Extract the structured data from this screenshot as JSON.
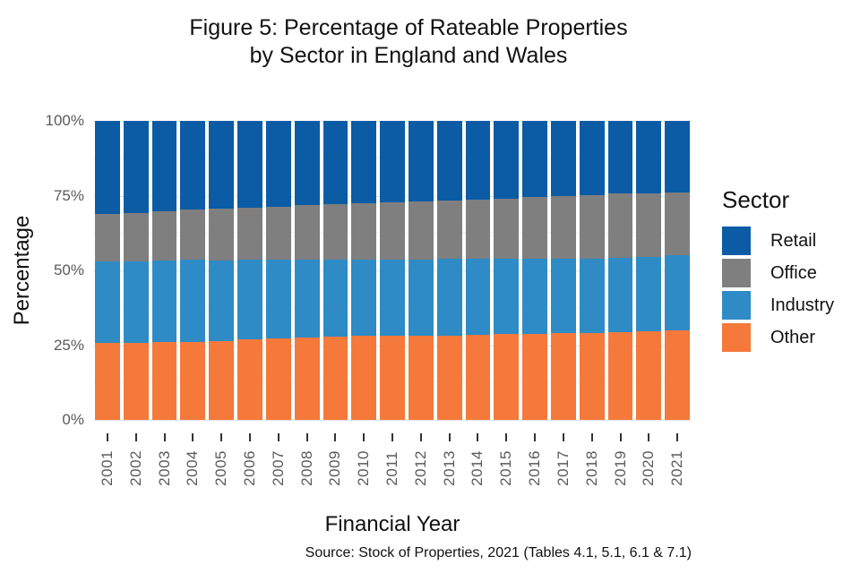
{
  "figure": {
    "title_line1": "Figure 5: Percentage of Rateable Properties",
    "title_line2": "by Sector in England and Wales",
    "caption": "Source: Stock of Properties, 2021 (Tables 4.1, 5.1, 6.1 & 7.1)"
  },
  "axes": {
    "y_title": "Percentage",
    "x_title": "Financial Year"
  },
  "legend": {
    "title": "Sector",
    "entries": [
      {
        "label": "Retail",
        "color": "#0B5CA5"
      },
      {
        "label": "Office",
        "color": "#7F7F7F"
      },
      {
        "label": "Industry",
        "color": "#2E8BC6"
      },
      {
        "label": "Other",
        "color": "#F4793B"
      }
    ]
  },
  "colors": {
    "retail": "#0B5CA5",
    "office": "#7F7F7F",
    "industry": "#2E8BC6",
    "other": "#F4793B",
    "axis_text": "#5a5a5a",
    "major_gridline": "#e4e4e4",
    "minor_gridline": "#f2f2f2",
    "background": "#ffffff"
  },
  "chart_data": {
    "type": "bar",
    "stacked": true,
    "percent_stacked": true,
    "title": "Figure 5: Percentage of Rateable Properties by Sector in England and Wales",
    "xlabel": "Financial Year",
    "ylabel": "Percentage",
    "caption": "Source: Stock of Properties, 2021 (Tables 4.1, 5.1, 6.1 & 7.1)",
    "legend_title": "Sector",
    "legend_position": "right",
    "grid": true,
    "ylim": [
      0,
      100
    ],
    "ytick_values": [
      0,
      25,
      50,
      75,
      100
    ],
    "ytick_labels": [
      "0%",
      "25%",
      "50%",
      "75%",
      "100%"
    ],
    "minor_gridline_values": [
      12.5,
      37.5,
      62.5,
      87.5
    ],
    "categories": [
      "2001",
      "2002",
      "2003",
      "2004",
      "2005",
      "2006",
      "2007",
      "2008",
      "2009",
      "2010",
      "2011",
      "2012",
      "2013",
      "2014",
      "2015",
      "2016",
      "2017",
      "2018",
      "2019",
      "2020",
      "2021"
    ],
    "stack_order_bottom_to_top": [
      "Other",
      "Industry",
      "Office",
      "Retail"
    ],
    "series": [
      {
        "name": "Other",
        "color": "#F4793B",
        "values": [
          25.7,
          25.8,
          26.1,
          26.2,
          26.4,
          27.0,
          27.3,
          27.6,
          27.9,
          28.0,
          28.0,
          28.1,
          28.2,
          28.4,
          28.7,
          28.8,
          29.0,
          29.1,
          29.3,
          29.5,
          29.9
        ]
      },
      {
        "name": "Industry",
        "color": "#2E8BC6",
        "values": [
          27.2,
          27.2,
          27.3,
          27.3,
          26.9,
          26.7,
          26.4,
          26.1,
          25.7,
          25.6,
          25.6,
          25.5,
          25.6,
          25.4,
          25.3,
          25.2,
          25.0,
          24.9,
          24.9,
          25.1,
          25.1
        ]
      },
      {
        "name": "Office",
        "color": "#7F7F7F",
        "values": [
          15.9,
          16.2,
          16.5,
          16.8,
          17.3,
          17.3,
          17.6,
          18.1,
          18.6,
          18.9,
          19.2,
          19.4,
          19.6,
          19.9,
          20.0,
          20.6,
          21.0,
          21.3,
          21.5,
          21.2,
          21.2
        ]
      },
      {
        "name": "Retail",
        "color": "#0B5CA5",
        "values": [
          31.2,
          30.8,
          30.1,
          29.7,
          29.4,
          29.0,
          28.7,
          28.2,
          27.8,
          27.5,
          27.2,
          27.0,
          26.6,
          26.3,
          26.0,
          25.4,
          25.0,
          24.7,
          24.3,
          24.2,
          23.8
        ]
      }
    ]
  }
}
